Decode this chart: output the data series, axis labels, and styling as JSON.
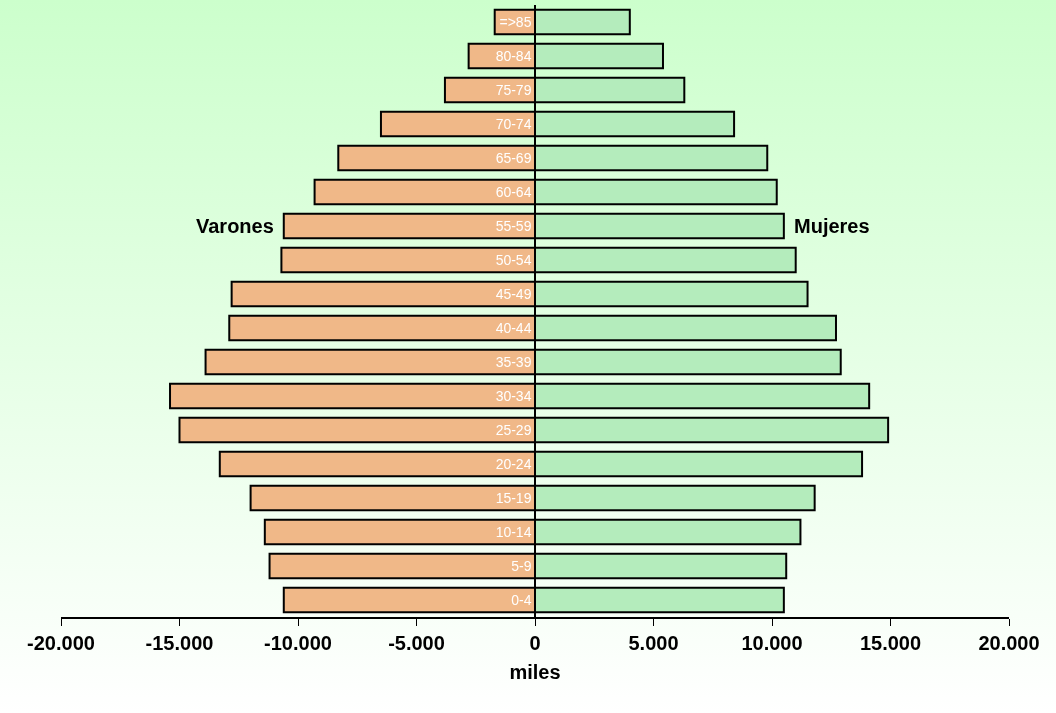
{
  "chart_data": {
    "type": "bar",
    "orientation": "horizontal",
    "xlabel": "miles",
    "categories": [
      "=>85",
      "80-84",
      "75-79",
      "70-74",
      "65-69",
      "60-64",
      "55-59",
      "50-54",
      "45-49",
      "40-44",
      "35-39",
      "30-34",
      "25-29",
      "20-24",
      "15-19",
      "10-14",
      "5-9",
      "0-4"
    ],
    "series": [
      {
        "name": "Varones",
        "color": "#f0b888",
        "values": [
          -1700,
          -2800,
          -3800,
          -6500,
          -8300,
          -9300,
          -10600,
          -10700,
          -12800,
          -12900,
          -13900,
          -15400,
          -15000,
          -13300,
          -12000,
          -11400,
          -11200,
          -10600
        ]
      },
      {
        "name": "Mujeres",
        "color": "#b4ecbc",
        "values": [
          4000,
          5400,
          6300,
          8400,
          9800,
          10200,
          10500,
          11000,
          11500,
          12700,
          12900,
          14100,
          14900,
          13800,
          11800,
          11200,
          10600,
          10500
        ]
      }
    ],
    "xlim": [
      -20000,
      20000
    ],
    "xticks": [
      {
        "value": -20000,
        "label": "-20.000"
      },
      {
        "value": -15000,
        "label": "-15.000"
      },
      {
        "value": -10000,
        "label": "-10.000"
      },
      {
        "value": -5000,
        "label": "-5.000"
      },
      0,
      {
        "value": 5000,
        "label": "5.000"
      },
      {
        "value": 10000,
        "label": "10.000"
      },
      {
        "value": 15000,
        "label": "15.000"
      },
      {
        "value": 20000,
        "label": "20.000"
      }
    ],
    "stacked": true,
    "grid": false,
    "legend": false
  }
}
